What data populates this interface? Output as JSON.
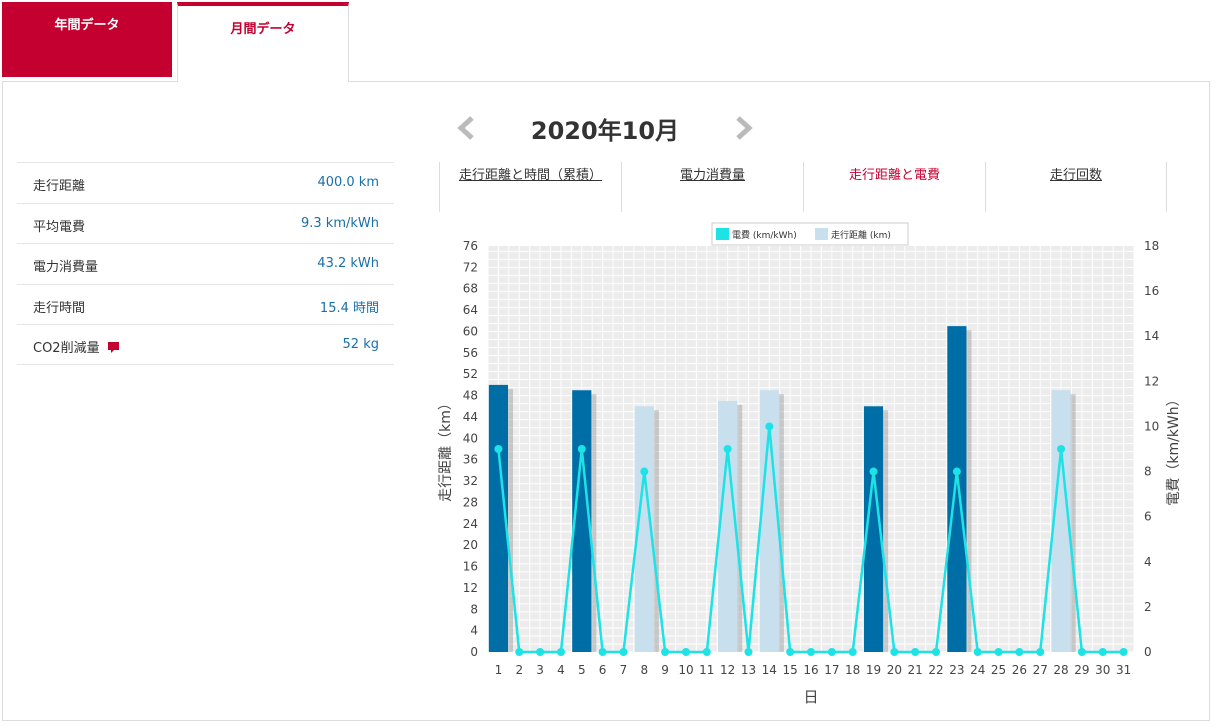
{
  "tabs": {
    "year": "年間データ",
    "month": "月間データ"
  },
  "month_nav": {
    "title": "2020年10月",
    "prev_icon": "chevron-left-icon",
    "next_icon": "chevron-right-icon"
  },
  "summary": [
    {
      "label": "走行距離",
      "value": "400.0 km"
    },
    {
      "label": "平均電費",
      "value": "9.3 km/kWh"
    },
    {
      "label": "電力消費量",
      "value": "43.2 kWh"
    },
    {
      "label": "走行時間",
      "value": "15.4 時間"
    },
    {
      "label": "CO2削減量",
      "value": "52 kg"
    }
  ],
  "subtabs": [
    "走行距離と時間（累積）",
    "電力消費量",
    "走行距離と電費",
    "走行回数"
  ],
  "colors": {
    "brand": "#c3002f",
    "bar_dark": "#006ea6",
    "bar_light": "#c8dfee",
    "line": "#1de2e6",
    "plot_bg": "#ececec"
  },
  "chart_data": {
    "type": "bar",
    "xlabel": "日",
    "ylabel": "走行距離（km）",
    "ylabel_right": "電費（km/kWh）",
    "ylim": [
      0,
      76
    ],
    "ylim_right": [
      0,
      18
    ],
    "yticks": [
      0,
      4,
      8,
      12,
      16,
      20,
      24,
      28,
      32,
      36,
      40,
      44,
      48,
      52,
      56,
      60,
      64,
      68,
      72,
      76
    ],
    "yticks_right": [
      0,
      2,
      4,
      6,
      8,
      10,
      12,
      14,
      16,
      18
    ],
    "grid": true,
    "legend": "top-center",
    "categories": [
      "1",
      "2",
      "3",
      "4",
      "5",
      "6",
      "7",
      "8",
      "9",
      "10",
      "11",
      "12",
      "13",
      "14",
      "15",
      "16",
      "17",
      "18",
      "19",
      "20",
      "21",
      "22",
      "23",
      "24",
      "25",
      "26",
      "27",
      "28",
      "29",
      "30",
      "31"
    ],
    "series": [
      {
        "name": "走行距離 (km)",
        "type": "bar",
        "values": [
          50,
          0,
          0,
          0,
          49,
          0,
          0,
          46,
          0,
          0,
          0,
          47,
          0,
          49,
          0,
          0,
          0,
          0,
          46,
          0,
          0,
          0,
          61,
          0,
          0,
          0,
          0,
          49,
          0,
          0,
          0
        ],
        "shade": [
          "dark",
          "",
          "",
          "",
          "dark",
          "",
          "",
          "light",
          "",
          "",
          "",
          "light",
          "",
          "light",
          "",
          "",
          "",
          "",
          "dark",
          "",
          "",
          "",
          "dark",
          "",
          "",
          "",
          "",
          "light",
          "",
          "",
          ""
        ]
      },
      {
        "name": "電費 (km/kWh)",
        "type": "line",
        "axis": "right",
        "values": [
          9,
          0,
          0,
          0,
          9,
          0,
          0,
          8,
          0,
          0,
          0,
          9,
          0,
          10,
          0,
          0,
          0,
          0,
          8,
          0,
          0,
          0,
          8,
          0,
          0,
          0,
          0,
          9,
          0,
          0,
          0
        ]
      }
    ]
  }
}
